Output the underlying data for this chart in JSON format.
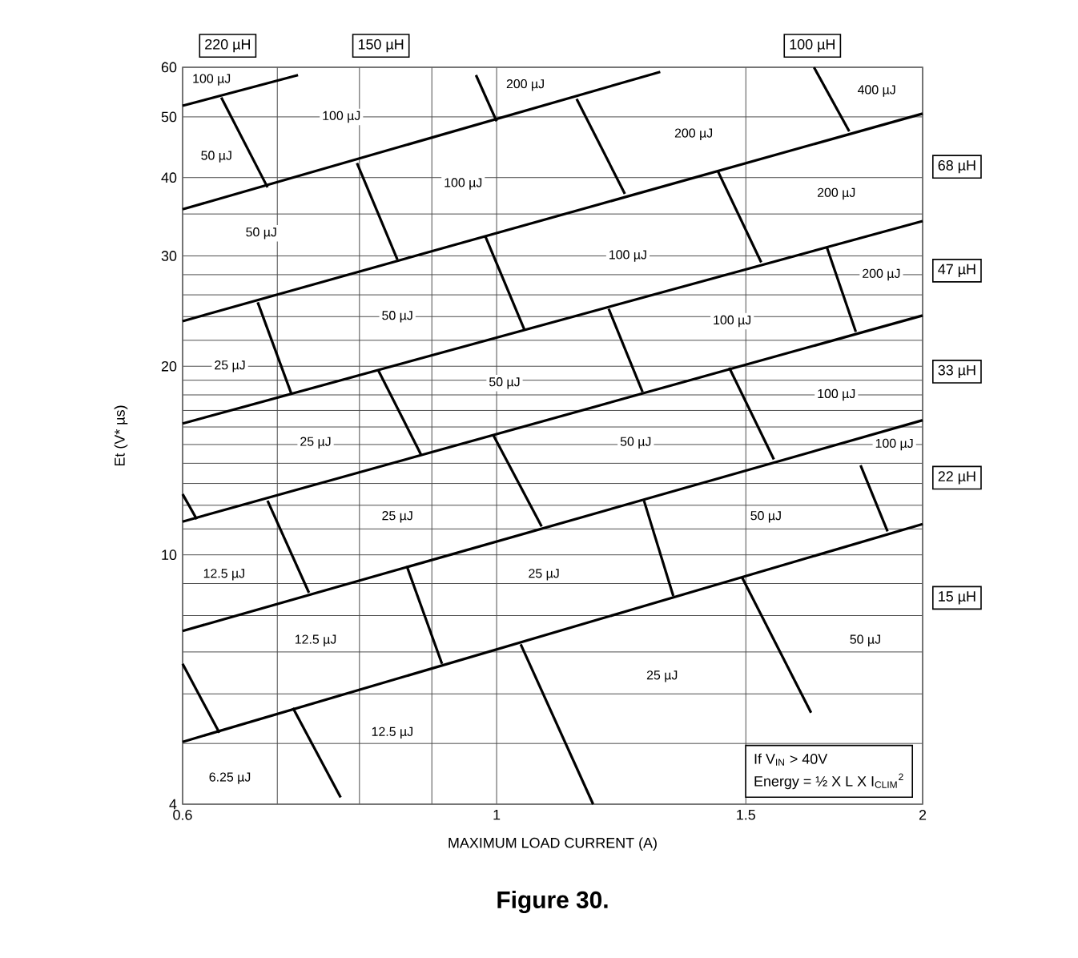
{
  "chart_data": {
    "type": "line",
    "title": "Figure 30.",
    "xlabel": "MAXIMUM LOAD CURRENT (A)",
    "ylabel": "Et (V* µs)",
    "log": "xy",
    "grid": true,
    "marker": "none",
    "line_style": "solid",
    "xlim": [
      0.6,
      2
    ],
    "ylim": [
      4,
      60
    ],
    "xticks": [
      0.6,
      {
        "value": 0.7,
        "label": null
      },
      {
        "value": 0.8,
        "label": null
      },
      {
        "value": 0.9,
        "label": null
      },
      1,
      1.5,
      2
    ],
    "yticks": [
      4,
      {
        "value": 5,
        "label": null
      },
      {
        "value": 6,
        "label": null
      },
      {
        "value": 7,
        "label": null
      },
      {
        "value": 8,
        "label": null
      },
      {
        "value": 9,
        "label": null
      },
      10,
      {
        "value": 11,
        "label": null
      },
      {
        "value": 12,
        "label": null
      },
      {
        "value": 13,
        "label": null
      },
      {
        "value": 14,
        "label": null
      },
      {
        "value": 15,
        "label": null
      },
      {
        "value": 16,
        "label": null
      },
      {
        "value": 17,
        "label": null
      },
      {
        "value": 18,
        "label": null
      },
      {
        "value": 19,
        "label": null
      },
      20,
      {
        "value": 22,
        "label": null
      },
      {
        "value": 24,
        "label": null
      },
      {
        "value": 26,
        "label": null
      },
      {
        "value": 28,
        "label": null
      },
      30,
      {
        "value": 35,
        "label": null
      },
      40,
      50,
      60
    ],
    "series": [
      {
        "color": "#000000",
        "x": [
          0.6,
          0.724
        ],
        "values": [
          52.1,
          58.3
        ]
      },
      {
        "color": "#000000",
        "x": [
          0.6,
          1.305
        ],
        "values": [
          35.6,
          59
        ]
      },
      {
        "color": "#000000",
        "x": [
          0.6,
          2
        ],
        "values": [
          23.6,
          50.6
        ]
      },
      {
        "color": "#000000",
        "x": [
          0.6,
          2
        ],
        "values": [
          16.2,
          34.1
        ]
      },
      {
        "color": "#000000",
        "x": [
          0.6,
          2
        ],
        "values": [
          11.3,
          24.1
        ]
      },
      {
        "color": "#000000",
        "x": [
          0.6,
          2
        ],
        "values": [
          7.56,
          16.4
        ]
      },
      {
        "color": "#000000",
        "x": [
          0.6,
          2
        ],
        "values": [
          5.03,
          11.2
        ]
      },
      {
        "color": "#000000",
        "x": [
          0.639,
          0.689
        ],
        "values": [
          53.7,
          38.6
        ]
      },
      {
        "color": "#000000",
        "x": [
          0.967,
          1.0
        ],
        "values": [
          58.3,
          49.2
        ]
      },
      {
        "color": "#000000",
        "x": [
          0.797,
          0.851
        ],
        "values": [
          42.2,
          29.6
        ]
      },
      {
        "color": "#000000",
        "x": [
          0.982,
          1.046
        ],
        "values": [
          32.2,
          22.9
        ]
      },
      {
        "color": "#000000",
        "x": [
          0.678,
          0.716
        ],
        "values": [
          25.3,
          18.1
        ]
      },
      {
        "color": "#000000",
        "x": [
          0.825,
          0.885
        ],
        "values": [
          19.7,
          14.4
        ]
      },
      {
        "color": "#000000",
        "x": [
          0.995,
          1.076
        ],
        "values": [
          15.5,
          11.1
        ]
      },
      {
        "color": "#000000",
        "x": [
          1.139,
          1.232
        ],
        "values": [
          53.4,
          37.7
        ]
      },
      {
        "color": "#000000",
        "x": [
          1.676,
          1.775
        ],
        "values": [
          60,
          47.4
        ]
      },
      {
        "color": "#000000",
        "x": [
          1.433,
          1.538
        ],
        "values": [
          41.0,
          29.3
        ]
      },
      {
        "color": "#000000",
        "x": [
          1.712,
          1.794
        ],
        "values": [
          30.9,
          22.7
        ]
      },
      {
        "color": "#000000",
        "x": [
          1.2,
          1.268
        ],
        "values": [
          24.7,
          18.2
        ]
      },
      {
        "color": "#000000",
        "x": [
          1.46,
          1.57
        ],
        "values": [
          19.9,
          14.2
        ]
      },
      {
        "color": "#000000",
        "x": [
          1.808,
          1.889
        ],
        "values": [
          13.9,
          10.9
        ]
      },
      {
        "color": "#000000",
        "x": [
          1.271,
          1.333
        ],
        "values": [
          12.2,
          8.6
        ]
      },
      {
        "color": "#000000",
        "x": [
          1.491,
          1.668
        ],
        "values": [
          9.2,
          5.6
        ]
      },
      {
        "color": "#000000",
        "x": [
          1.04,
          1.17
        ],
        "values": [
          7.2,
          4
        ]
      },
      {
        "color": "#000000",
        "x": [
          0.6,
          0.614
        ],
        "values": [
          12.5,
          11.4
        ]
      },
      {
        "color": "#000000",
        "x": [
          0.689,
          0.737
        ],
        "values": [
          12.2,
          8.7
        ]
      },
      {
        "color": "#000000",
        "x": [
          0.864,
          0.915
        ],
        "values": [
          9.6,
          6.7
        ]
      },
      {
        "color": "#000000",
        "x": [
          0.6,
          0.637
        ],
        "values": [
          6.7,
          5.2
        ]
      },
      {
        "color": "#000000",
        "x": [
          0.718,
          0.776
        ],
        "values": [
          5.7,
          4.1
        ]
      }
    ],
    "annotations": [
      "220 µH",
      "150 µH",
      "100 µH",
      "68 µH",
      "47 µH",
      "33 µH",
      "22 µH",
      "15 µH",
      {
        "text": "100 µJ",
        "x": 0.629,
        "y": 57.3
      },
      {
        "text": "100 µJ",
        "x": 0.777,
        "y": 50
      },
      {
        "text": "200 µJ",
        "x": 1.048,
        "y": 56.2
      },
      {
        "text": "50 µJ",
        "x": 0.634,
        "y": 43.2
      },
      {
        "text": "100 µJ",
        "x": 0.947,
        "y": 39.1
      },
      {
        "text": "50 µJ",
        "x": 0.682,
        "y": 32.6
      },
      {
        "text": "50 µJ",
        "x": 0.851,
        "y": 24
      },
      {
        "text": "25 µJ",
        "x": 0.648,
        "y": 20
      },
      {
        "text": "50 µJ",
        "x": 1.013,
        "y": 18.8
      },
      {
        "text": "25 µJ",
        "x": 0.745,
        "y": 15.1
      },
      {
        "text": "400 µJ",
        "x": 1.856,
        "y": 55
      },
      {
        "text": "200 µJ",
        "x": 1.378,
        "y": 46.9
      },
      {
        "text": "200 µJ",
        "x": 1.738,
        "y": 37.7
      },
      {
        "text": "100 µJ",
        "x": 1.238,
        "y": 30
      },
      {
        "text": "200 µJ",
        "x": 1.87,
        "y": 28
      },
      {
        "text": "100 µJ",
        "x": 1.467,
        "y": 23.6
      },
      {
        "text": "100 µJ",
        "x": 1.738,
        "y": 18
      },
      {
        "text": "50 µJ",
        "x": 1.254,
        "y": 15.1
      },
      {
        "text": "100 µJ",
        "x": 1.91,
        "y": 15
      },
      {
        "text": "25 µJ",
        "x": 0.851,
        "y": 11.5
      },
      {
        "text": "12.5 µJ",
        "x": 0.642,
        "y": 9.3
      },
      {
        "text": "12.5 µJ",
        "x": 0.745,
        "y": 7.3
      },
      {
        "text": "12.5 µJ",
        "x": 0.844,
        "y": 5.2
      },
      {
        "text": "6.25 µJ",
        "x": 0.648,
        "y": 4.4
      },
      {
        "text": "25 µJ",
        "x": 1.08,
        "y": 9.3
      },
      {
        "text": "50 µJ",
        "x": 1.55,
        "y": 11.5
      },
      {
        "text": "50 µJ",
        "x": 1.822,
        "y": 7.3
      },
      {
        "text": "25 µJ",
        "x": 1.309,
        "y": 6.4
      },
      "If V$_{IN}$ > 40V",
      "Energy = ½ X L X I$_{CLIM}$$^{2}$"
    ]
  }
}
